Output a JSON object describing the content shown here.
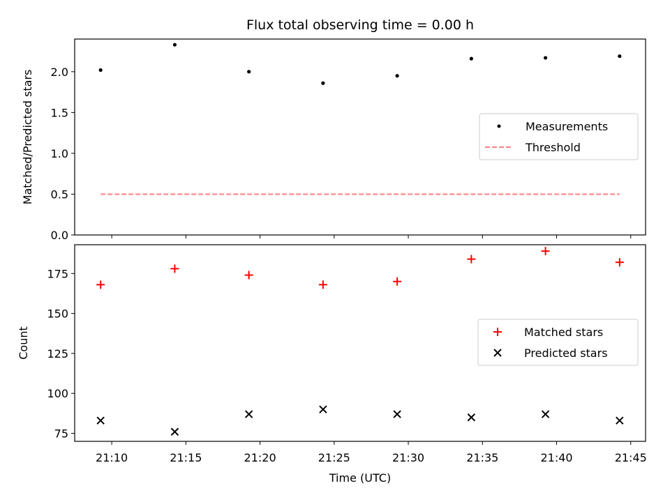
{
  "chart_data": [
    {
      "type": "scatter",
      "title": "Flux total observing time = 0.00 h",
      "xlabel": "",
      "ylabel": "Matched/Predicted stars",
      "x": [
        "21:09:15",
        "21:14:15",
        "21:19:15",
        "21:24:15",
        "21:29:15",
        "21:34:15",
        "21:39:15",
        "21:44:15"
      ],
      "ylim": [
        0,
        2.4
      ],
      "yticks": [
        "0.0",
        "0.5",
        "1.0",
        "1.5",
        "2.0"
      ],
      "legend_position": "center-right",
      "series": [
        {
          "name": "Measurements",
          "marker": "dot",
          "color": "#000000",
          "values": [
            2.02,
            2.33,
            2.0,
            1.86,
            1.95,
            2.16,
            2.17,
            2.19
          ]
        },
        {
          "name": "Threshold",
          "style": "dashed-line",
          "color": "#ff7f7f",
          "values": [
            0.5,
            0.5,
            0.5,
            0.5,
            0.5,
            0.5,
            0.5,
            0.5
          ]
        }
      ]
    },
    {
      "type": "scatter",
      "title": "",
      "xlabel": "Time (UTC)",
      "ylabel": "Count",
      "x": [
        "21:09:15",
        "21:14:15",
        "21:19:15",
        "21:24:15",
        "21:29:15",
        "21:34:15",
        "21:39:15",
        "21:44:15"
      ],
      "xlim": [
        "21:07:30",
        "21:46:00"
      ],
      "xticks": [
        "21:10",
        "21:15",
        "21:20",
        "21:25",
        "21:30",
        "21:35",
        "21:40",
        "21:45"
      ],
      "ylim": [
        70,
        193
      ],
      "yticks": [
        "75",
        "100",
        "125",
        "150",
        "175"
      ],
      "legend_position": "center-right",
      "series": [
        {
          "name": "Matched stars",
          "marker": "plus",
          "color": "#ff0000",
          "values": [
            168,
            178,
            174,
            168,
            170,
            184,
            189,
            182
          ]
        },
        {
          "name": "Predicted stars",
          "marker": "x",
          "color": "#000000",
          "values": [
            83,
            76,
            87,
            90,
            87,
            85,
            87,
            83
          ]
        }
      ]
    }
  ]
}
